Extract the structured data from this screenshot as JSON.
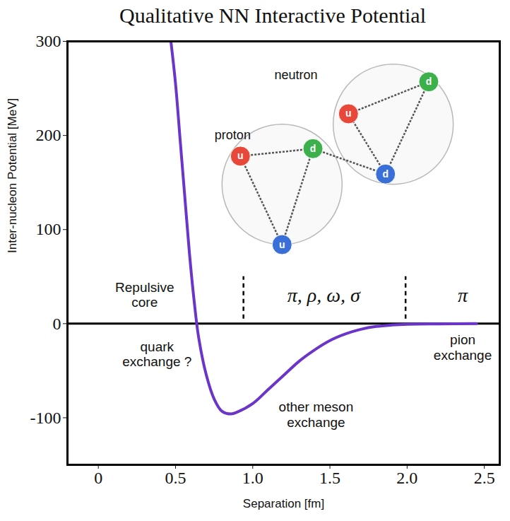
{
  "chart_data": {
    "type": "line",
    "title": "Qualitative NN Interactive Potential",
    "x_label": "Separation [fm]",
    "y_label": "Inter-nucleon Potential [MeV]",
    "x": [
      0.47,
      0.5,
      0.53,
      0.56,
      0.59,
      0.62,
      0.65,
      0.7,
      0.75,
      0.8,
      0.86,
      0.9,
      1.0,
      1.1,
      1.2,
      1.3,
      1.4,
      1.5,
      1.6,
      1.7,
      1.8,
      1.9,
      2.0,
      2.2,
      2.45
    ],
    "values": [
      300,
      255,
      195,
      135,
      75,
      25,
      -15,
      -55,
      -80,
      -93,
      -96,
      -94,
      -85,
      -70,
      -55,
      -40,
      -28,
      -18,
      -11,
      -6,
      -3,
      -1.5,
      -0.7,
      -0.3,
      0
    ],
    "color": "#6a35c8",
    "xlim": [
      -0.2,
      2.6
    ],
    "xticks": [
      0,
      0.5,
      {
        "value": 1,
        "label": "1.0"
      },
      1.5,
      {
        "value": 2,
        "label": "2.0"
      },
      2.5
    ],
    "ylim": [
      -150,
      300
    ],
    "yticks": [
      -100,
      0,
      100,
      200,
      300
    ],
    "baseline": 0,
    "boundaries": [
      {
        "x": 0.94,
        "y1": 5,
        "y2": 50
      },
      {
        "x": 1.99,
        "y1": 5,
        "y2": 50
      }
    ],
    "region_labels": [
      {
        "text": "π, ρ, ω, σ",
        "x": 1.46,
        "y": 30
      },
      {
        "text": "π",
        "x": 2.36,
        "y": 30
      }
    ],
    "annotations": [
      {
        "text": "Repulsive\ncore",
        "x": 0.3,
        "y": 31
      },
      {
        "text": "quark\nexchange ?",
        "x": 0.38,
        "y": -32
      },
      {
        "text": "other meson\nexchange",
        "x": 1.41,
        "y": -96
      },
      {
        "text": "pion\nexchange",
        "x": 2.36,
        "y": -25
      }
    ],
    "particles": [
      {
        "name": "proton",
        "label_x": 0.87,
        "label_y": 200,
        "x": 1.19,
        "y": 148,
        "quarks": [
          {
            "flavor": "u",
            "color": "#e8483a",
            "x": 0.92,
            "y": 178
          },
          {
            "flavor": "d",
            "color": "#3cb04a",
            "x": 1.39,
            "y": 186
          },
          {
            "flavor": "u",
            "color": "#3a6fd8",
            "x": 1.19,
            "y": 84
          }
        ]
      },
      {
        "name": "neutron",
        "label_x": 1.28,
        "label_y": 264,
        "x": 1.91,
        "y": 212,
        "quarks": [
          {
            "flavor": "u",
            "color": "#e8483a",
            "x": 1.62,
            "y": 223
          },
          {
            "flavor": "d",
            "color": "#3cb04a",
            "x": 2.14,
            "y": 257
          },
          {
            "flavor": "d",
            "color": "#3a6fd8",
            "x": 1.86,
            "y": 159
          }
        ]
      }
    ]
  }
}
